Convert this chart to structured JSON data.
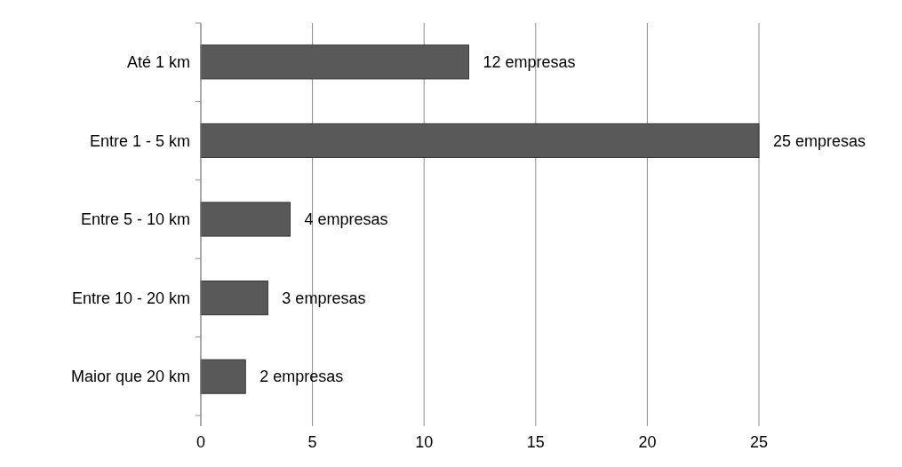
{
  "chart_data": {
    "type": "bar",
    "orientation": "horizontal",
    "categories": [
      "Até 1 km",
      "Entre 1 - 5 km",
      "Entre 5 - 10 km",
      "Entre 10 - 20 km",
      "Maior que 20 km"
    ],
    "values": [
      12,
      25,
      4,
      3,
      2
    ],
    "value_labels": [
      "12 empresas",
      "25 empresas",
      "4 empresas",
      "3 empresas",
      "2 empresas"
    ],
    "color": "#595959",
    "xlim": [
      0,
      25
    ],
    "xticks": [
      0,
      5,
      10,
      15,
      20,
      25
    ],
    "grid": "x"
  }
}
